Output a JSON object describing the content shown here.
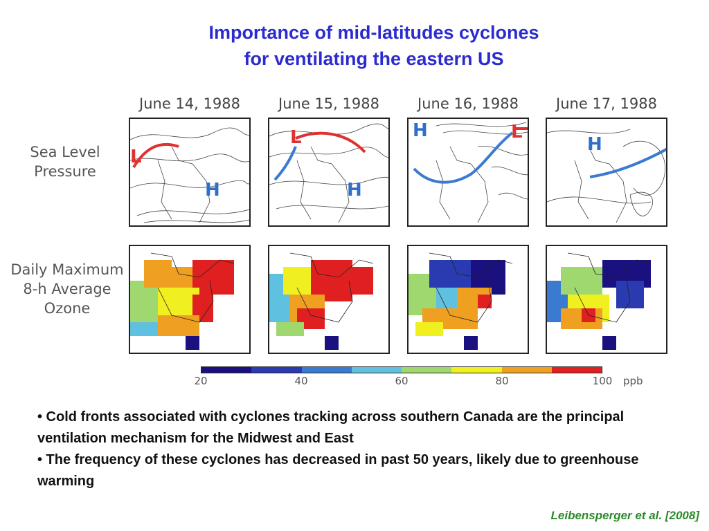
{
  "slide": {
    "title_line1": "Importance of mid-latitudes cyclones",
    "title_line2": "for ventilating the eastern US",
    "citation": "Leibensperger et al. [2008]"
  },
  "figure": {
    "dates": [
      "June 14, 1988",
      "June 15, 1988",
      "June 16, 1988",
      "June 17, 1988"
    ],
    "row_labels": {
      "slp_line1": "Sea Level",
      "slp_line2": "Pressure",
      "ozone_line1": "Daily Maximum",
      "ozone_line2": "8-h Average",
      "ozone_line3": "Ozone"
    },
    "markers": {
      "high": "H",
      "low": "L"
    },
    "colorbar": {
      "ticks": [
        "20",
        "40",
        "60",
        "80",
        "100"
      ],
      "unit": "ppb",
      "colors": [
        "#1a1080",
        "#2a3ab0",
        "#3a7ad0",
        "#60c0e0",
        "#a0d870",
        "#f0f020",
        "#f0a020",
        "#e02020"
      ]
    }
  },
  "bullets": [
    "• Cold fronts associated with cyclones tracking across southern Canada are the principal ventilation mechanism for the Midwest and East",
    "• The frequency of these cyclones has decreased in past 50 years, likely due to greenhouse warming"
  ]
}
